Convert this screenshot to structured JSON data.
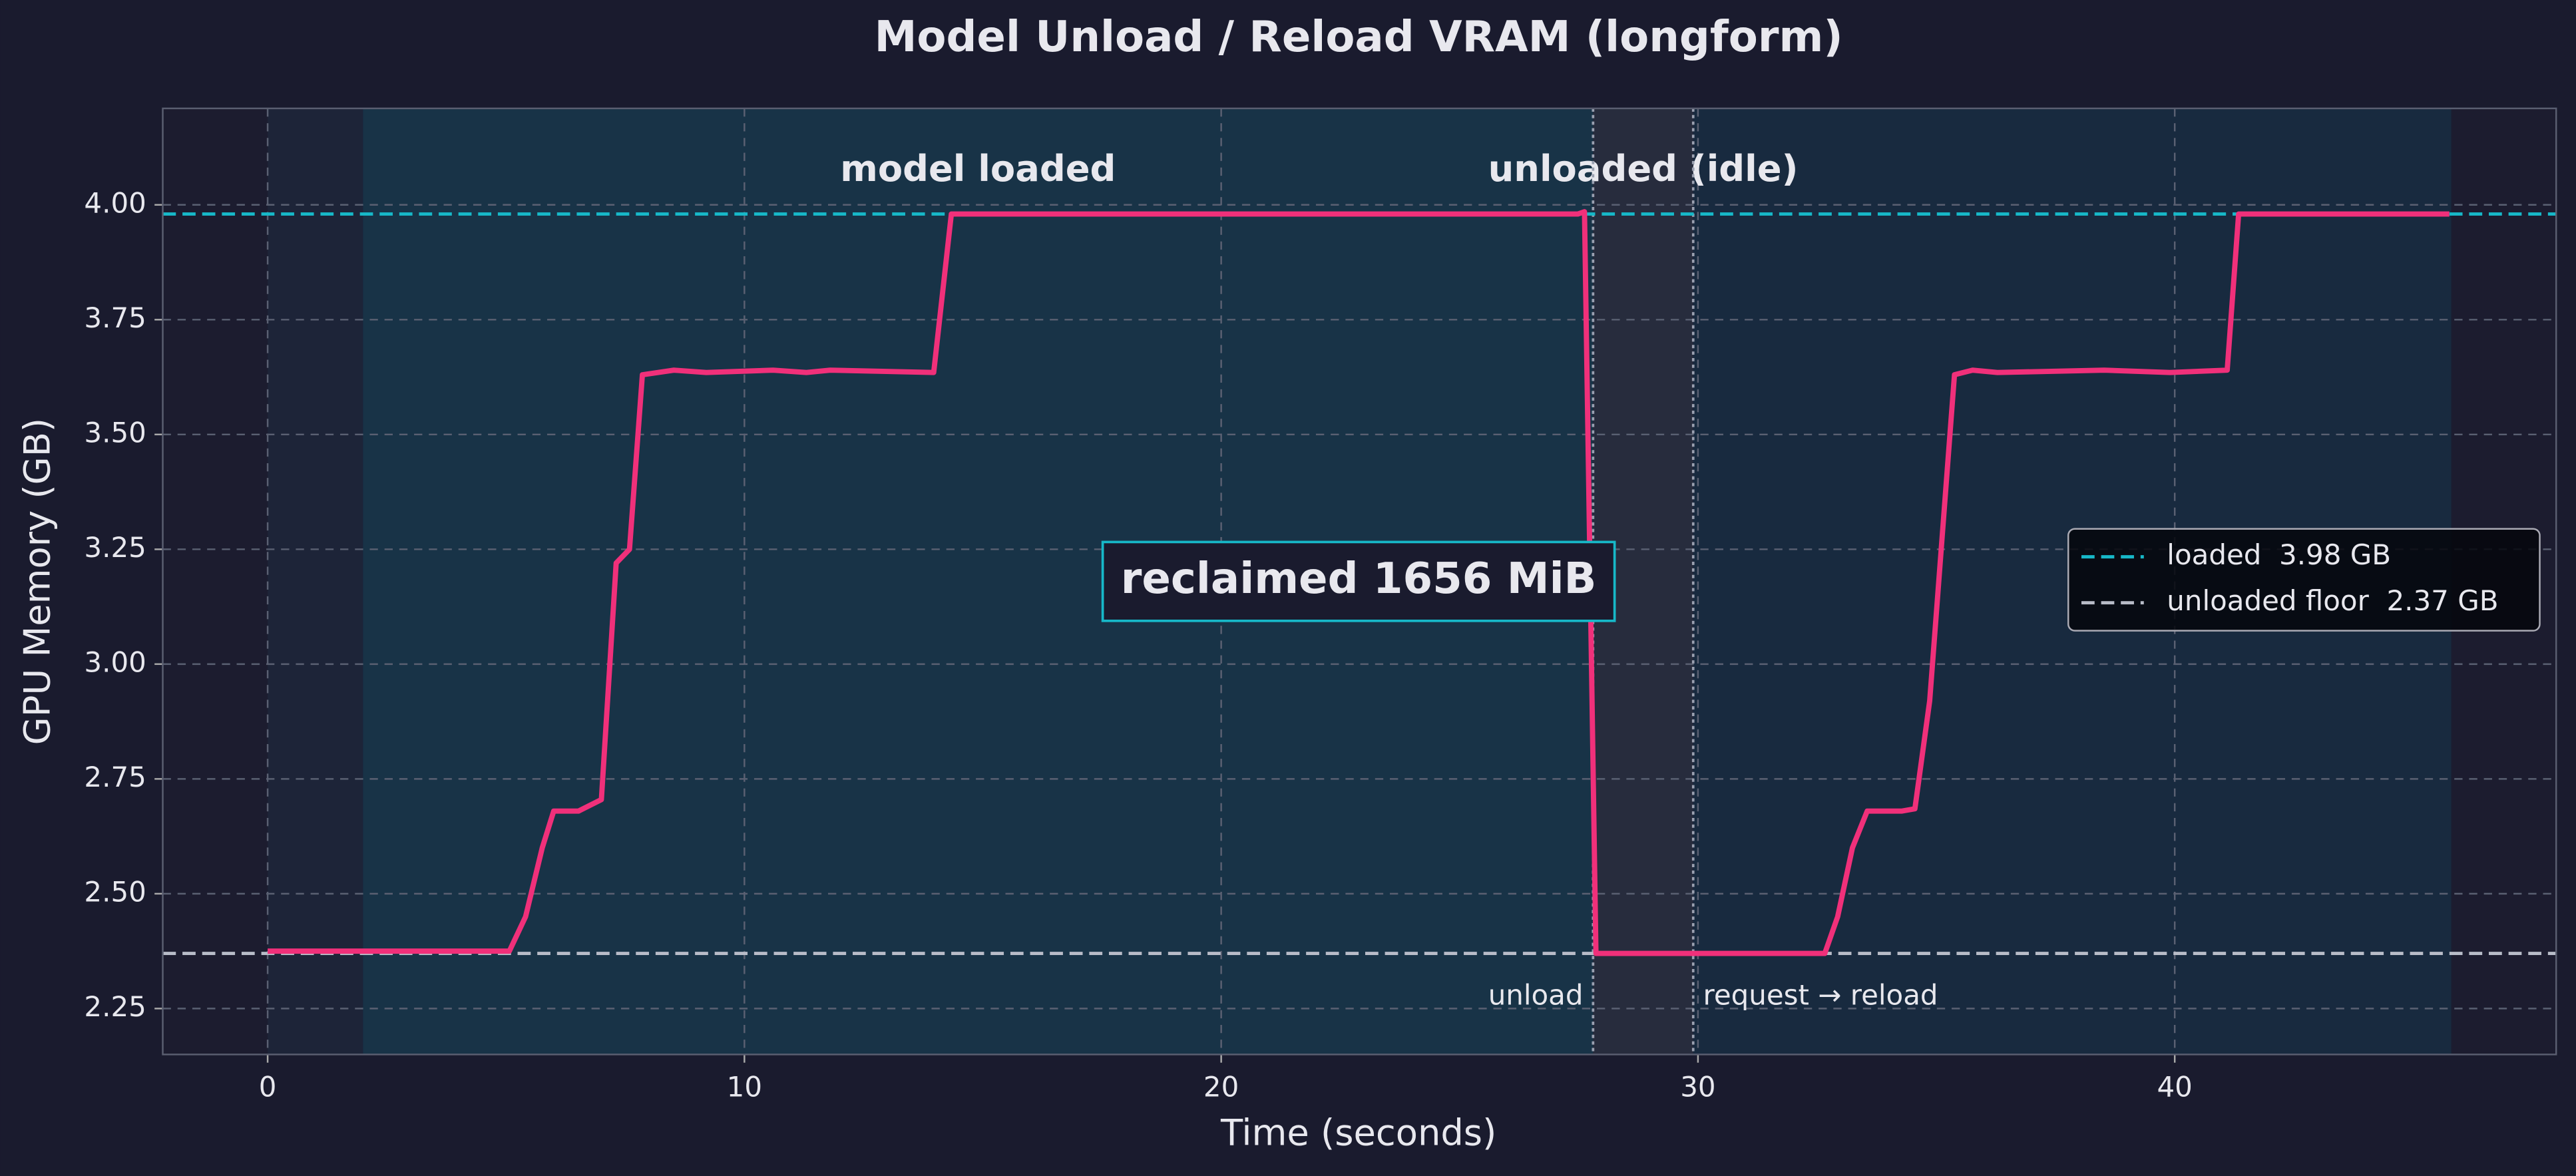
{
  "chart_data": {
    "type": "line",
    "title": "Model Unload / Reload VRAM (longform)",
    "xlabel": "Time (seconds)",
    "ylabel": "GPU Memory (GB)",
    "x": [
      0,
      5.07,
      5.41,
      5.76,
      6.0,
      6.52,
      7.0,
      7.31,
      7.59,
      7.86,
      8.52,
      9.2,
      10.6,
      11.3,
      11.8,
      13.97,
      14.34,
      15.1,
      27.48,
      27.62,
      27.86,
      32.66,
      32.93,
      33.24,
      33.55,
      34.28,
      34.55,
      34.86,
      35.38,
      35.76,
      36.28,
      38.52,
      39.9,
      41.1,
      41.34,
      45.76
    ],
    "values": [
      2.375,
      2.375,
      2.45,
      2.6,
      2.68,
      2.68,
      2.705,
      3.22,
      3.25,
      3.63,
      3.64,
      3.635,
      3.64,
      3.635,
      3.64,
      3.635,
      3.98,
      3.98,
      3.98,
      3.985,
      2.37,
      2.37,
      2.45,
      2.6,
      2.68,
      2.68,
      2.685,
      2.92,
      3.63,
      3.64,
      3.635,
      3.64,
      3.635,
      3.64,
      3.98,
      3.98
    ],
    "color": "#f0307a",
    "xlim": [
      -2.2,
      48.0
    ],
    "ylim": [
      2.15,
      4.21
    ],
    "xticks": [
      0,
      10,
      20,
      30,
      40
    ],
    "yticks": [
      2.25,
      {
        "value": 2.5,
        "label": "2.50"
      },
      2.75,
      {
        "value": 3,
        "label": "3.00"
      },
      3.25,
      {
        "value": 3.5,
        "label": "3.50"
      },
      3.75,
      {
        "value": 4,
        "label": "4.00"
      }
    ],
    "grid": true,
    "spans": [
      {
        "start": 0,
        "end": 2,
        "color": "#1d2438"
      },
      {
        "start": 2,
        "end": 27.8,
        "color": "#183347",
        "label": "model loaded"
      },
      {
        "start": 27.8,
        "end": 29.9,
        "color": "#272c3d",
        "label": "unloaded (idle)"
      },
      {
        "start": 29.9,
        "end": 45.8,
        "color": "#182a3f"
      }
    ],
    "vlines": [
      {
        "x": 27.8,
        "label": "unload"
      },
      {
        "x": 29.9,
        "label": "request → reload"
      }
    ],
    "hlines": [
      {
        "name": "loaded  3.98 GB",
        "value": 3.98,
        "color": "#17b8c8"
      },
      {
        "name": "unloaded floor  2.37 GB",
        "value": 2.37,
        "color": "#b8bcc8"
      }
    ],
    "annotation": "reclaimed 1656 MiB",
    "legend": "center right"
  }
}
